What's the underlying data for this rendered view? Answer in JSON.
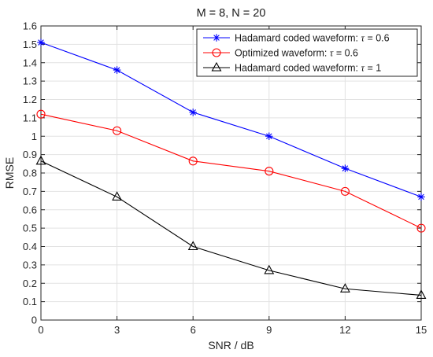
{
  "chart_data": {
    "type": "line",
    "title": "M = 8, N = 20",
    "xlabel": "SNR / dB",
    "ylabel": "RMSE",
    "xlim": [
      0,
      15
    ],
    "ylim": [
      0,
      1.6
    ],
    "x": [
      0,
      3,
      6,
      9,
      12,
      15
    ],
    "xticks": [
      "0",
      "3",
      "6",
      "9",
      "12",
      "15"
    ],
    "yticks": [
      "0",
      "0.1",
      "0.2",
      "0.3",
      "0.4",
      "0.5",
      "0.6",
      "0.7",
      "0.8",
      "0.9",
      "1",
      "1.1",
      "1.2",
      "1.3",
      "1.4",
      "1.5",
      "1.6"
    ],
    "grid": true,
    "legend_position": "top-right",
    "series": [
      {
        "name": "Hadamard coded waveform: τ = 0.6",
        "legend_prefix": "Hadamard coded waveform: ",
        "legend_tau": "τ",
        "legend_suffix": " = 0.6",
        "color": "#0000ff",
        "marker": "asterisk",
        "values": [
          1.51,
          1.36,
          1.13,
          1.0,
          0.825,
          0.67
        ]
      },
      {
        "name": "Optimized waveform: τ = 0.6",
        "legend_prefix": "Optimized waveform: ",
        "legend_tau": "τ",
        "legend_suffix": " = 0.6",
        "color": "#ff0000",
        "marker": "circle",
        "values": [
          1.12,
          1.03,
          0.865,
          0.81,
          0.7,
          0.5
        ]
      },
      {
        "name": "Hadamard coded waveform: τ = 1",
        "legend_prefix": "Hadamard coded waveform: ",
        "legend_tau": "τ",
        "legend_suffix": " = 1",
        "color": "#000000",
        "marker": "triangle",
        "values": [
          0.865,
          0.67,
          0.4,
          0.27,
          0.17,
          0.135
        ]
      }
    ]
  }
}
